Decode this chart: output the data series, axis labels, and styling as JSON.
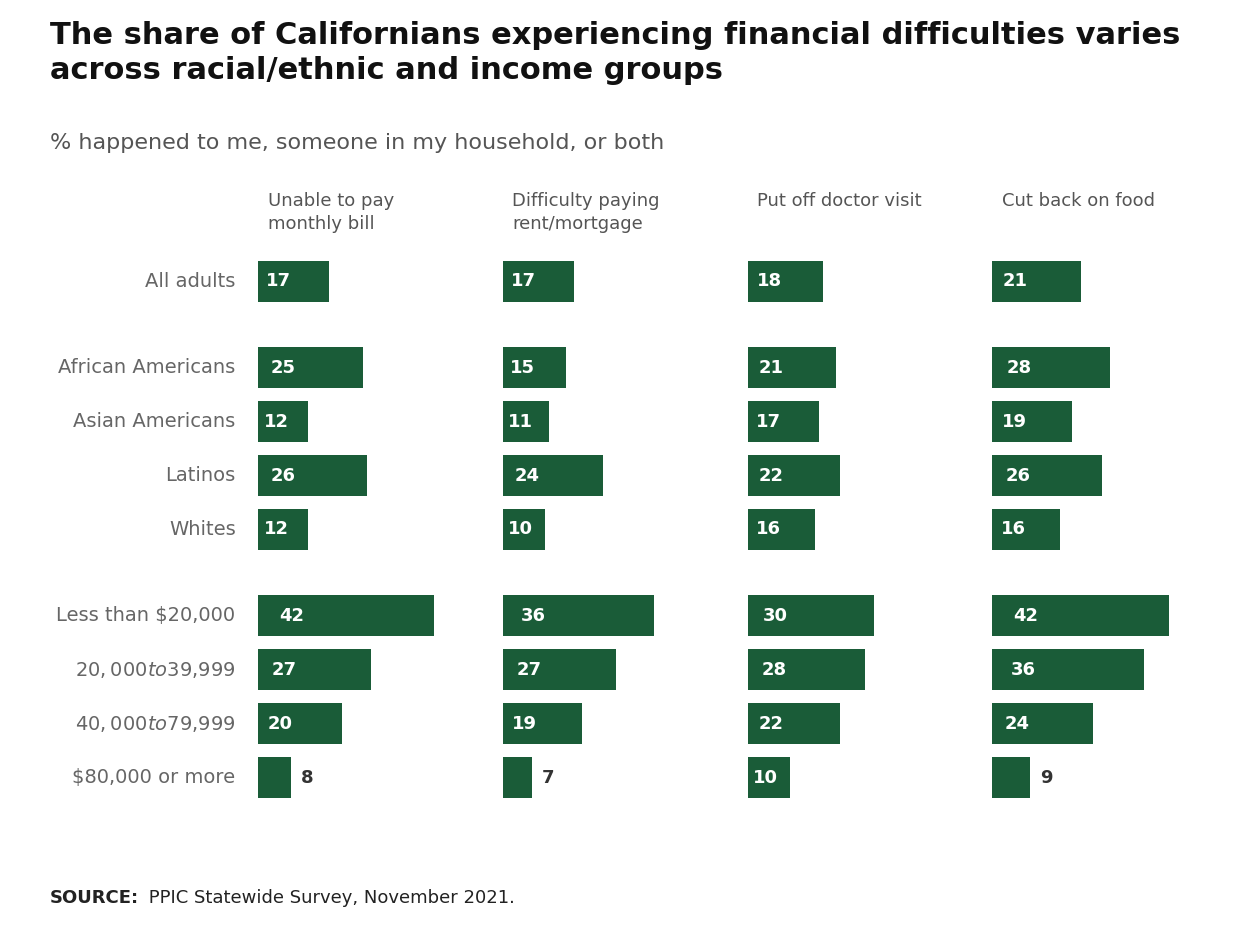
{
  "title": "The share of Californians experiencing financial difficulties varies\nacross racial/ethnic and income groups",
  "subtitle": "% happened to me, someone in my household, or both",
  "source_bold": "SOURCE:",
  "source_rest": " PPIC Statewide Survey, November 2021.",
  "bar_color": "#1a5c38",
  "background_color": "#ffffff",
  "footer_bg_color": "#e8e8e8",
  "col_headers": [
    "Unable to pay\nmonthly bill",
    "Difficulty paying\nrent/mortgage",
    "Put off doctor visit",
    "Cut back on food"
  ],
  "row_labels": [
    "All adults",
    "",
    "African Americans",
    "Asian Americans",
    "Latinos",
    "Whites",
    "",
    "Less than $20,000",
    "$20,000 to $39,999",
    "$40,000 to $79,999",
    "$80,000 or more"
  ],
  "data": [
    [
      17,
      17,
      18,
      21
    ],
    [
      null,
      null,
      null,
      null
    ],
    [
      25,
      15,
      21,
      28
    ],
    [
      12,
      11,
      17,
      19
    ],
    [
      26,
      24,
      22,
      26
    ],
    [
      12,
      10,
      16,
      16
    ],
    [
      null,
      null,
      null,
      null
    ],
    [
      42,
      36,
      30,
      42
    ],
    [
      27,
      27,
      28,
      36
    ],
    [
      20,
      19,
      22,
      24
    ],
    [
      8,
      7,
      10,
      9
    ]
  ],
  "max_value": 42,
  "title_fontsize": 22,
  "subtitle_fontsize": 16,
  "label_fontsize": 14,
  "header_fontsize": 13,
  "value_fontsize": 13,
  "source_fontsize": 13,
  "label_color": "#666666",
  "header_color": "#555555",
  "outside_text_color": "#333333"
}
